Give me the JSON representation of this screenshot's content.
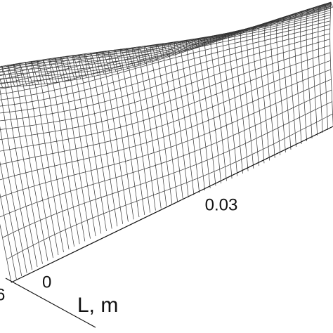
{
  "chart_data": {
    "type": "surface",
    "x_label": "L, m",
    "xticks": [
      0,
      0.03
    ],
    "yticks": [
      6
    ]
  }
}
